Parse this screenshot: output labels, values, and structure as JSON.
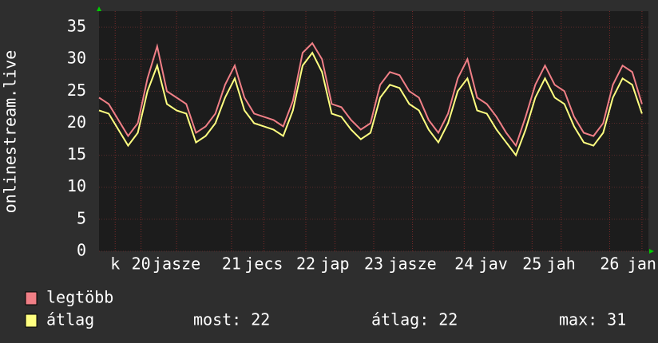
{
  "chart_data": {
    "type": "line",
    "y_label": "onlinestream.live",
    "x": [
      0,
      3,
      6,
      9,
      12,
      15,
      18,
      21,
      24,
      27,
      30,
      33,
      36,
      39,
      42,
      45,
      48,
      51,
      54,
      57,
      60,
      63,
      66,
      69,
      72,
      75,
      78,
      81,
      84,
      87,
      90,
      93,
      96,
      99,
      102,
      105,
      108,
      111,
      114,
      117,
      120,
      123,
      126,
      129,
      132,
      135,
      138,
      141,
      144,
      147,
      150,
      153,
      156,
      159,
      162,
      165,
      168
    ],
    "series": [
      {
        "name": "legtöbb",
        "color": "#f07f86",
        "values": [
          24,
          23,
          20.5,
          18,
          20,
          27,
          32,
          25,
          24,
          23,
          18.5,
          19.5,
          21.5,
          26,
          29,
          24,
          21.5,
          21,
          20.5,
          19.5,
          23.5,
          31,
          32.5,
          30,
          23,
          22.5,
          20.5,
          19,
          20,
          26,
          28,
          27.5,
          25,
          24,
          20.5,
          18.5,
          21.5,
          27,
          30,
          24,
          23,
          21,
          18.5,
          16.5,
          21,
          26,
          29,
          26,
          25,
          21,
          18.5,
          18,
          20,
          26,
          29,
          28,
          23
        ]
      },
      {
        "name": "átlag",
        "color": "#ffff80",
        "values": [
          22,
          21.5,
          19,
          16.5,
          18.5,
          25,
          29,
          23,
          22,
          21.5,
          17,
          18,
          20,
          24,
          27,
          22,
          20,
          19.5,
          19,
          18,
          22,
          29,
          31,
          28,
          21.5,
          21,
          19,
          17.5,
          18.5,
          24,
          26,
          25.5,
          23,
          22,
          19,
          17,
          20,
          25,
          27,
          22,
          21.5,
          19,
          17,
          15,
          19,
          24,
          27,
          24,
          23,
          19.5,
          17,
          16.5,
          18.5,
          24,
          27,
          26,
          21.5
        ]
      }
    ],
    "xlim": [
      0,
      170
    ],
    "xticks": [
      {
        "value": 5,
        "label": "k"
      },
      {
        "value": 13,
        "label": "20"
      },
      {
        "value": 24,
        "label": "jasze"
      },
      {
        "value": 41,
        "label": "21"
      },
      {
        "value": 51,
        "label": "jecs"
      },
      {
        "value": 64,
        "label": "22"
      },
      {
        "value": 73,
        "label": "jap"
      },
      {
        "value": 85,
        "label": "23"
      },
      {
        "value": 97,
        "label": "jasze"
      },
      {
        "value": 113,
        "label": "24"
      },
      {
        "value": 122,
        "label": "jav"
      },
      {
        "value": 134,
        "label": "25"
      },
      {
        "value": 143,
        "label": "jah"
      },
      {
        "value": 158,
        "label": "26"
      },
      {
        "value": 168,
        "label": "jan"
      }
    ],
    "ylim": [
      0,
      37.5
    ],
    "yticks": [
      0,
      5,
      10,
      15,
      20,
      25,
      30,
      35
    ],
    "grid": true,
    "stats": [
      {
        "label": "most:",
        "value": 22
      },
      {
        "label": "átlag:",
        "value": 22
      },
      {
        "label": "max:",
        "value": 31
      }
    ]
  }
}
